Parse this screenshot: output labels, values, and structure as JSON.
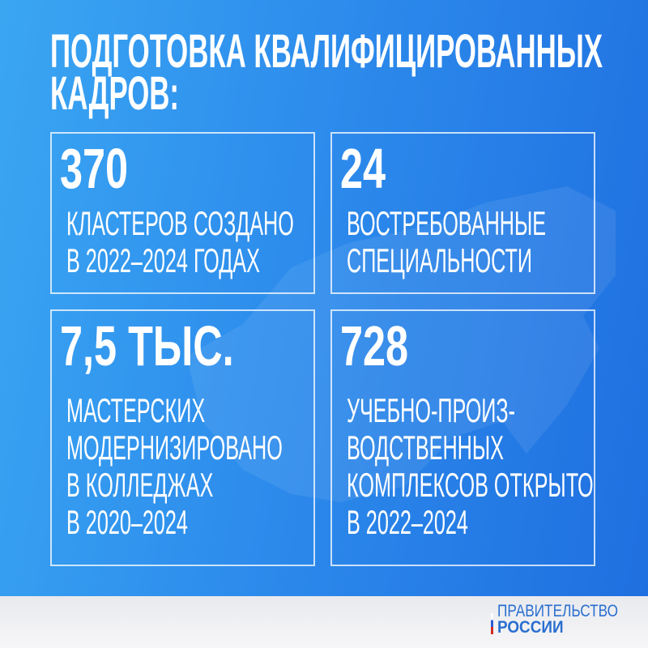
{
  "colors": {
    "gradient_start": "#3aa6f2",
    "gradient_end": "#1f6fe0",
    "text": "#ffffff",
    "logo": "#2a6fd0"
  },
  "title": {
    "lines": [
      "ПОДГОТОВКА КВАЛИФИЦИРОВАННЫХ",
      "КАДРОВ:"
    ]
  },
  "stats": [
    {
      "value": "370",
      "lines": [
        "КЛАСТЕРОВ СОЗДАНО",
        "В 2022–2024 ГОДАХ"
      ]
    },
    {
      "value": "24",
      "lines": [
        "ВОСТРЕБОВАННЫЕ",
        "СПЕЦИАЛЬНОСТИ"
      ]
    },
    {
      "value": "7,5 ТЫС.",
      "lines": [
        "МАСТЕРСКИХ",
        "МОДЕРНИЗИРОВАНО",
        "В КОЛЛЕДЖАХ",
        "В 2020–2024"
      ]
    },
    {
      "value": "728",
      "lines": [
        "УЧЕБНО-ПРОИЗ-",
        "ВОДСТВЕННЫХ",
        "КОМПЛЕКСОВ ОТКРЫТО",
        "В 2022–2024"
      ]
    }
  ],
  "logo": {
    "line1": "ПРАВИТЕЛЬСТВО",
    "line2": "РОССИИ"
  },
  "background_icon": "russia-map-silhouette"
}
